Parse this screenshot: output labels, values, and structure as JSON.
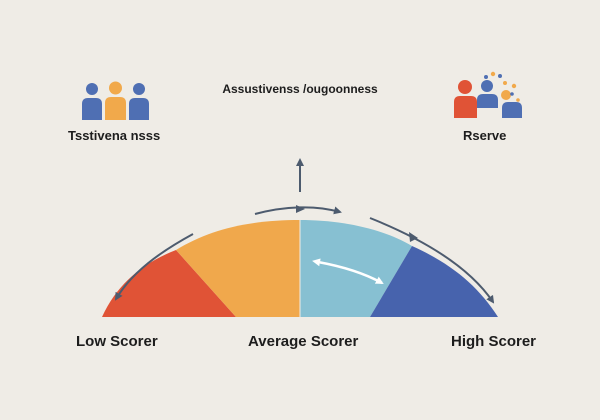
{
  "header": {
    "title": "Assustivenss /ougoonness",
    "left_caption": "Tsstivena nsss",
    "right_caption": "Rserve"
  },
  "scale": {
    "labels": {
      "low": "Low Scorer",
      "average": "Average Scorer",
      "high": "High Scorer"
    }
  },
  "icons": {
    "left": "group-of-people-icon",
    "right": "team-with-ideas-icon"
  },
  "colors": {
    "background": "#efece6",
    "low": "#e05336",
    "average_left": "#f0a84c",
    "average_right": "#87c0d2",
    "high": "#4763ad",
    "arrow": "#4d5b6e",
    "people_blue": "#4f6fb3",
    "people_orange": "#f1a94b"
  }
}
